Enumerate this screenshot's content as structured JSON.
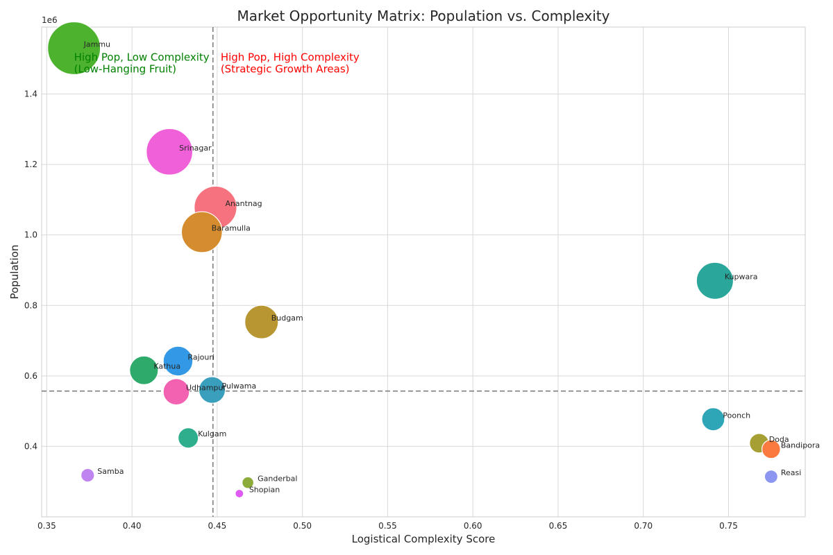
{
  "chart_data": {
    "type": "scatter",
    "title": "Market Opportunity Matrix: Population vs. Complexity",
    "xlabel": "Logistical Complexity Score",
    "ylabel": "Population",
    "y_scale_multiplier_label": "1e6",
    "xlim": [
      0.347,
      0.795
    ],
    "ylim": [
      200000,
      1590000
    ],
    "x_ticks": [
      0.35,
      0.4,
      0.45,
      0.5,
      0.55,
      0.6,
      0.65,
      0.7,
      0.75
    ],
    "x_tick_labels": [
      "0.35",
      "0.40",
      "0.45",
      "0.50",
      "0.55",
      "0.60",
      "0.65",
      "0.70",
      "0.75"
    ],
    "y_ticks": [
      400000,
      600000,
      800000,
      1000000,
      1200000,
      1400000
    ],
    "y_tick_labels": [
      "0.4",
      "0.6",
      "0.8",
      "1.0",
      "1.2",
      "1.4"
    ],
    "grid": true,
    "reference_lines": {
      "x": 0.4475,
      "y": 557000
    },
    "annotations": [
      {
        "lines": [
          "High Pop, Low Complexity",
          "(Low-Hanging Fruit)"
        ],
        "color": "#008000"
      },
      {
        "lines": [
          "High Pop, High Complexity",
          "(Strategic Growth Areas)"
        ],
        "color": "#ff0000"
      }
    ],
    "points": [
      {
        "name": "Jammu",
        "x": 0.366,
        "y": 1530000,
        "color": "#4db32e"
      },
      {
        "name": "Srinagar",
        "x": 0.422,
        "y": 1236000,
        "color": "#f060d8"
      },
      {
        "name": "Anantnag",
        "x": 0.449,
        "y": 1078000,
        "color": "#f5727e"
      },
      {
        "name": "Baramulla",
        "x": 0.441,
        "y": 1008000,
        "color": "#d48c2e"
      },
      {
        "name": "Kupwara",
        "x": 0.742,
        "y": 870000,
        "color": "#2aa69a"
      },
      {
        "name": "Budgam",
        "x": 0.476,
        "y": 753000,
        "color": "#b89632"
      },
      {
        "name": "Rajouri",
        "x": 0.427,
        "y": 642000,
        "color": "#3399e6"
      },
      {
        "name": "Kathua",
        "x": 0.407,
        "y": 616000,
        "color": "#2eaa6a"
      },
      {
        "name": "Udhampur",
        "x": 0.426,
        "y": 555000,
        "color": "#f262b0"
      },
      {
        "name": "Pulwama",
        "x": 0.447,
        "y": 560000,
        "color": "#3a9ebd"
      },
      {
        "name": "Poonch",
        "x": 0.741,
        "y": 477000,
        "color": "#2ea6b8"
      },
      {
        "name": "Kulgam",
        "x": 0.433,
        "y": 424000,
        "color": "#2fae8e"
      },
      {
        "name": "Doda",
        "x": 0.768,
        "y": 409000,
        "color": "#a6a034"
      },
      {
        "name": "Bandipora",
        "x": 0.775,
        "y": 392000,
        "color": "#fa7a40"
      },
      {
        "name": "Samba",
        "x": 0.374,
        "y": 318000,
        "color": "#c084f0"
      },
      {
        "name": "Reasi",
        "x": 0.775,
        "y": 314000,
        "color": "#8c96f0"
      },
      {
        "name": "Ganderbal",
        "x": 0.468,
        "y": 297000,
        "color": "#8cab3a"
      },
      {
        "name": "Shopian",
        "x": 0.463,
        "y": 266000,
        "color": "#de5cf2"
      }
    ]
  }
}
